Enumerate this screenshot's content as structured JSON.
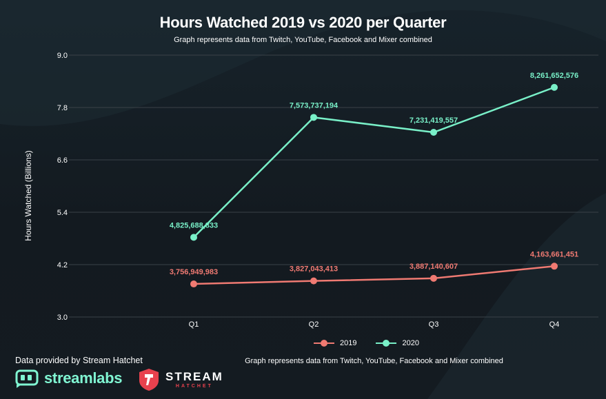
{
  "chart_data": {
    "type": "line",
    "title": "Hours Watched 2019 vs 2020 per Quarter",
    "subtitle": "Graph represents data from Twitch, YouTube, Facebook and Mixer combined",
    "xlabel": "",
    "ylabel": "Hours Watched (Billions)",
    "categories": [
      "Q1",
      "Q2",
      "Q3",
      "Q4"
    ],
    "y_ticks": [
      3.0,
      4.2,
      5.4,
      6.6,
      7.8,
      9.0
    ],
    "y_tick_labels": [
      "3.0",
      "4.2",
      "5.4",
      "6.6",
      "7.8",
      "9.0"
    ],
    "ylim": [
      3.0,
      9.0
    ],
    "grid": true,
    "legend_position": "bottom",
    "series": [
      {
        "name": "2019",
        "color": "#f07a72",
        "values": [
          3.756949983,
          3.827043413,
          3.887140607,
          4.163661451
        ],
        "labels": [
          "3,756,949,983",
          "3,827,043,413",
          "3,887,140,607",
          "4,163,661,451"
        ]
      },
      {
        "name": "2020",
        "color": "#79f0c8",
        "values": [
          4.825688833,
          7.573737194,
          7.231419557,
          8.261652576
        ],
        "labels": [
          "4,825,688,833",
          "7,573,737,194",
          "7,231,419,557",
          "8,261,652,576"
        ]
      }
    ]
  },
  "footer": {
    "note": "Graph represents data from Twitch, YouTube, Facebook and Mixer combined",
    "provided_by": "Data provided by Stream Hatchet"
  },
  "logos": {
    "streamlabs": "streamlabs",
    "stream": "STREAM",
    "hatchet": "HATCHET"
  },
  "colors": {
    "background": "#141b21",
    "grid": "#3a4248",
    "text": "#ffffff"
  }
}
